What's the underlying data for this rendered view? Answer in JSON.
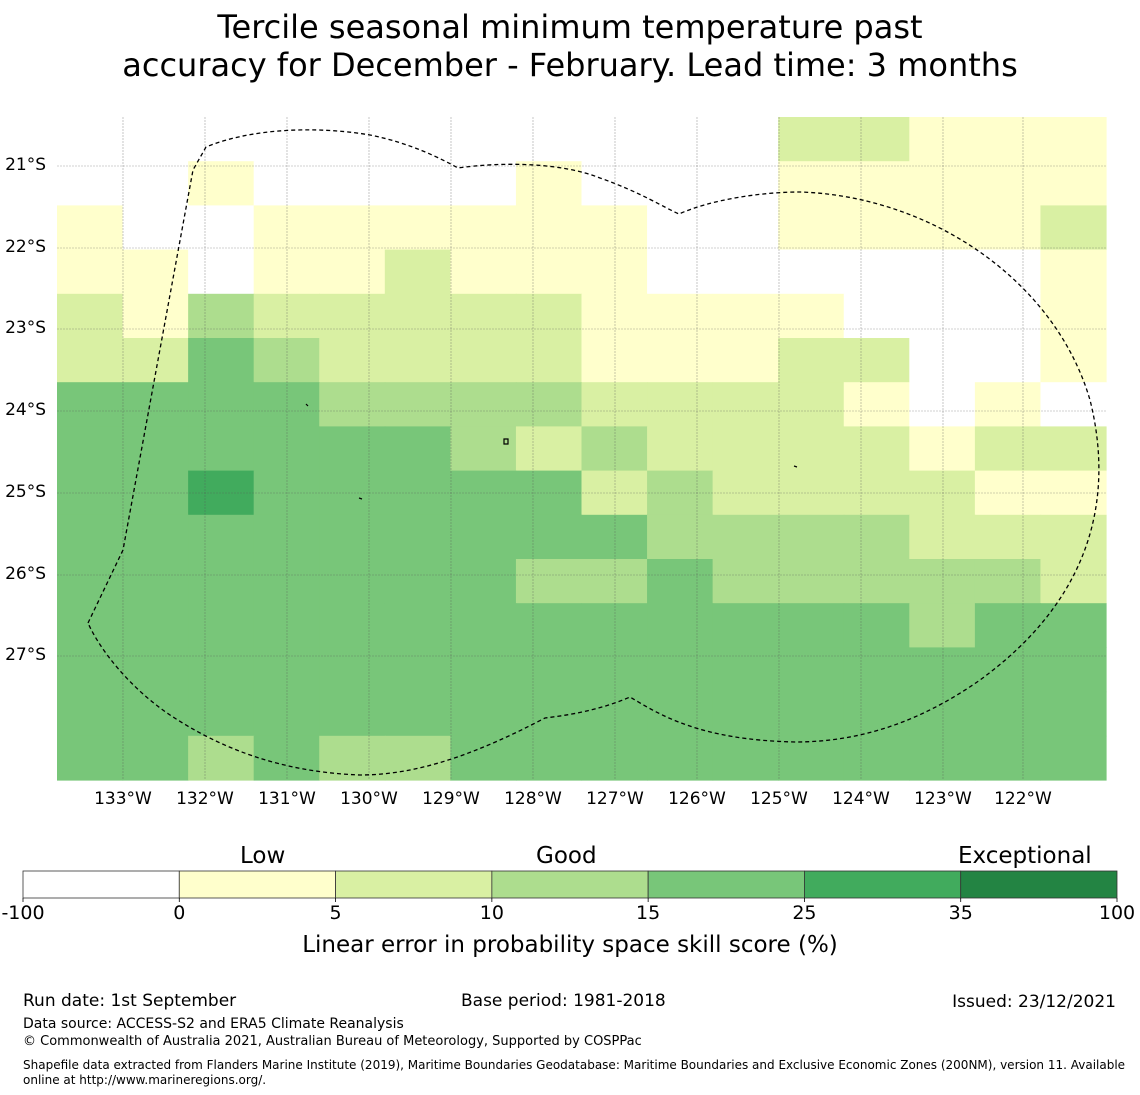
{
  "title": {
    "line1": "Tercile seasonal minimum temperature past",
    "line2": "accuracy for December - February. Lead time: 3 months"
  },
  "map": {
    "lat_labels": [
      "21°S",
      "22°S",
      "23°S",
      "24°S",
      "25°S",
      "26°S",
      "27°S"
    ],
    "lon_labels": [
      "133°W",
      "132°W",
      "131°W",
      "130°W",
      "129°W",
      "128°W",
      "127°W",
      "126°W",
      "125°W",
      "124°W",
      "123°W",
      "122°W"
    ],
    "grid_legend": {
      "W": "#ffffff",
      "Y": "#ffffcc",
      "L": "#d9f0a3",
      "M": "#addd8e",
      "G": "#78c679",
      "D": "#41ab5d",
      "X": "#238443"
    },
    "grid_rows": [
      "WWWWWWWWWWWLLYYY",
      "WWYWWWWYWWWYYYYY",
      "YWWYYYYYYWWYYYYL",
      "YYWYYLYYYWWWWWWY",
      "LYMLLLLLYYYYWWWY",
      "LLGMLLLLYYYLLWWY",
      "GGGGMMMMLLLLYWYW",
      "GGGGGGMLMLLLLYLL",
      "GGDGGGGGLMLLLLYY",
      "GGGGGGGGGMMMMLLL",
      "GGGGGGGMMGMMMMML",
      "GGGGGGGGGGGGGMGG",
      "GGGGGGGGGGGGGGGG",
      "GGGGGGGGGGGGGGGG",
      "GGMGMMGGGGGGGGGG"
    ]
  },
  "colorbar": {
    "heading_low": "Low",
    "heading_good": "Good",
    "heading_exceptional": "Exceptional",
    "ticks": [
      "-100",
      "0",
      "5",
      "10",
      "15",
      "25",
      "35",
      "100"
    ],
    "colors": [
      "#ffffff",
      "#ffffcc",
      "#d9f0a3",
      "#addd8e",
      "#78c679",
      "#41ab5d",
      "#238443"
    ],
    "label": "Linear error in probability space skill score (%)"
  },
  "footer": {
    "run_date": "Run date: 1st September",
    "base_period": "Base period: 1981-2018",
    "issued": "Issued: 23/12/2021",
    "data_source": "Data source: ACCESS-S2 and ERA5 Climate Reanalysis",
    "copyright": "© Commonwealth of Australia 2021, Australian Bureau of Meteorology, Supported by COSPPac",
    "shapefile": "Shapefile data extracted from Flanders Marine Institute (2019), Maritime Boundaries Geodatabase: Maritime Boundaries and Exclusive Economic Zones (200NM), version 11. Available online at http://www.marineregions.org/."
  }
}
